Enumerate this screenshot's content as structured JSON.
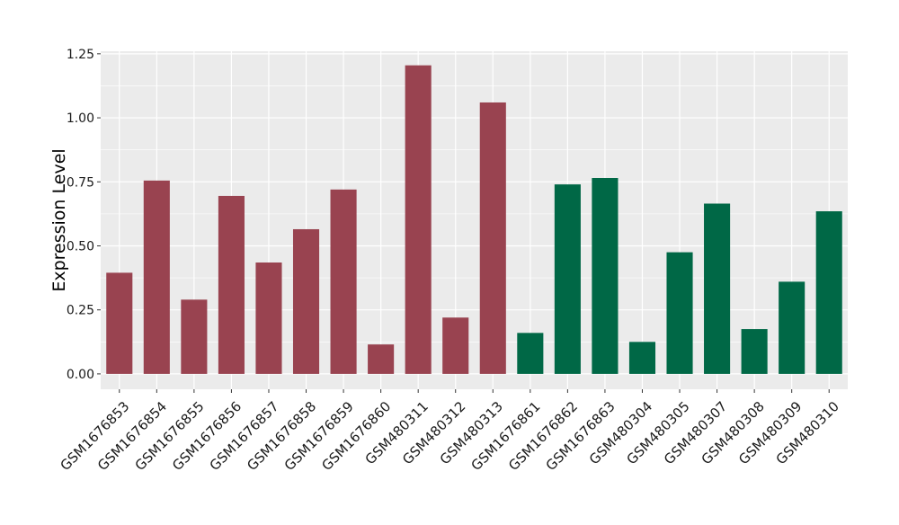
{
  "chart_data": {
    "type": "bar",
    "title": "",
    "xlabel": "",
    "ylabel": "Expression Level",
    "ylim": [
      -0.06,
      1.26
    ],
    "yticks": [
      0.0,
      0.25,
      0.5,
      0.75,
      1.0,
      1.25
    ],
    "ytick_labels": [
      "0.00",
      "0.25",
      "0.50",
      "0.75",
      "1.00",
      "1.25"
    ],
    "grid": true,
    "legend": "none",
    "categories": [
      "GSM1676853",
      "GSM1676854",
      "GSM1676855",
      "GSM1676856",
      "GSM1676857",
      "GSM1676858",
      "GSM1676859",
      "GSM1676860",
      "GSM480311",
      "GSM480312",
      "GSM480313",
      "GSM1676861",
      "GSM1676862",
      "GSM1676863",
      "GSM480304",
      "GSM480305",
      "GSM480307",
      "GSM480308",
      "GSM480309",
      "GSM480310"
    ],
    "values": [
      0.395,
      0.755,
      0.29,
      0.695,
      0.435,
      0.565,
      0.72,
      0.115,
      1.205,
      0.22,
      1.06,
      0.16,
      0.74,
      0.765,
      0.125,
      0.475,
      0.665,
      0.175,
      0.36,
      0.635
    ],
    "groups": [
      "A",
      "A",
      "A",
      "A",
      "A",
      "A",
      "A",
      "A",
      "A",
      "A",
      "A",
      "B",
      "B",
      "B",
      "B",
      "B",
      "B",
      "B",
      "B",
      "B"
    ],
    "colors": {
      "A": "#994350",
      "B": "#006846"
    },
    "panel_background": "#ebebeb",
    "gridline_color": "#ffffff"
  }
}
